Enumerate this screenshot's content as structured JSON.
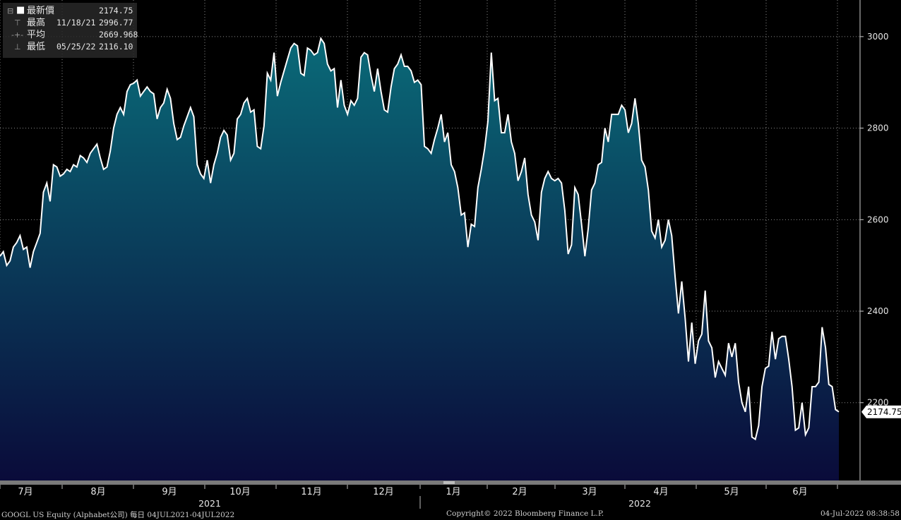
{
  "legend": {
    "last_label": "最新價",
    "last_value": "2174.75",
    "high_label": "最高",
    "high_date": "11/18/21",
    "high_value": "2996.77",
    "avg_label": "平均",
    "avg_value": "2669.968",
    "low_label": "最低",
    "low_date": "05/25/22",
    "low_value": "2116.10"
  },
  "footer": {
    "left": "GOOGL US Equity (Alphabet公司)  每日 04JUL2021-04JUL2022",
    "center": "Copyright© 2022 Bloomberg Finance L.P.",
    "right": "04-Jul-2022 08:38:58"
  },
  "colors": {
    "background": "#000000",
    "line": "#ffffff",
    "fill_top": "#0a6a78",
    "fill_bottom": "#0a0b3a",
    "grid": "#8a8a8a",
    "axis_strip": "#7a7a7a"
  },
  "chart_data": {
    "type": "area",
    "title": "",
    "xlabel": "",
    "ylabel": "",
    "ylim": [
      2030,
      3080
    ],
    "yticks": [
      2200,
      2400,
      2600,
      2800,
      3000
    ],
    "month_labels": [
      "7月",
      "8月",
      "9月",
      "10月",
      "11月",
      "12月",
      "1月",
      "2月",
      "3月",
      "4月",
      "5月",
      "6月"
    ],
    "year_labels": [
      "2021",
      "2022"
    ],
    "last_price_label": "2174.75",
    "grid": true,
    "series": [
      {
        "values": [
          2520,
          2530,
          2500,
          2510,
          2540,
          2550,
          2565,
          2535,
          2540,
          2495,
          2530,
          2550,
          2570,
          2660,
          2680,
          2640,
          2720,
          2715,
          2695,
          2700,
          2710,
          2705,
          2720,
          2715,
          2740,
          2735,
          2725,
          2745,
          2755,
          2765,
          2735,
          2710,
          2715,
          2750,
          2800,
          2830,
          2845,
          2830,
          2880,
          2895,
          2898,
          2905,
          2870,
          2880,
          2890,
          2880,
          2875,
          2820,
          2845,
          2855,
          2885,
          2865,
          2810,
          2775,
          2780,
          2805,
          2825,
          2845,
          2825,
          2720,
          2700,
          2690,
          2730,
          2680,
          2720,
          2745,
          2780,
          2795,
          2785,
          2730,
          2745,
          2820,
          2830,
          2855,
          2865,
          2835,
          2840,
          2760,
          2755,
          2805,
          2920,
          2905,
          2965,
          2870,
          2900,
          2925,
          2950,
          2975,
          2985,
          2980,
          2920,
          2915,
          2975,
          2970,
          2960,
          2965,
          2996,
          2985,
          2940,
          2925,
          2930,
          2845,
          2905,
          2850,
          2830,
          2860,
          2850,
          2865,
          2955,
          2965,
          2960,
          2915,
          2880,
          2930,
          2880,
          2840,
          2835,
          2890,
          2930,
          2940,
          2960,
          2935,
          2935,
          2925,
          2900,
          2905,
          2895,
          2760,
          2755,
          2745,
          2775,
          2800,
          2830,
          2770,
          2790,
          2720,
          2705,
          2670,
          2610,
          2615,
          2540,
          2590,
          2585,
          2670,
          2710,
          2755,
          2815,
          2965,
          2860,
          2865,
          2790,
          2790,
          2830,
          2770,
          2745,
          2685,
          2705,
          2735,
          2655,
          2610,
          2595,
          2555,
          2660,
          2690,
          2705,
          2690,
          2685,
          2690,
          2680,
          2620,
          2525,
          2545,
          2670,
          2655,
          2590,
          2520,
          2580,
          2665,
          2680,
          2720,
          2725,
          2800,
          2770,
          2830,
          2830,
          2830,
          2850,
          2840,
          2790,
          2810,
          2865,
          2810,
          2730,
          2715,
          2665,
          2575,
          2560,
          2600,
          2540,
          2555,
          2600,
          2565,
          2475,
          2395,
          2465,
          2385,
          2290,
          2375,
          2285,
          2335,
          2350,
          2445,
          2335,
          2320,
          2255,
          2290,
          2275,
          2260,
          2330,
          2300,
          2330,
          2245,
          2200,
          2180,
          2235,
          2125,
          2120,
          2150,
          2235,
          2275,
          2280,
          2355,
          2295,
          2340,
          2345,
          2345,
          2295,
          2235,
          2140,
          2145,
          2200,
          2130,
          2145,
          2235,
          2235,
          2245,
          2365,
          2320,
          2240,
          2235,
          2185,
          2180
        ]
      }
    ]
  }
}
